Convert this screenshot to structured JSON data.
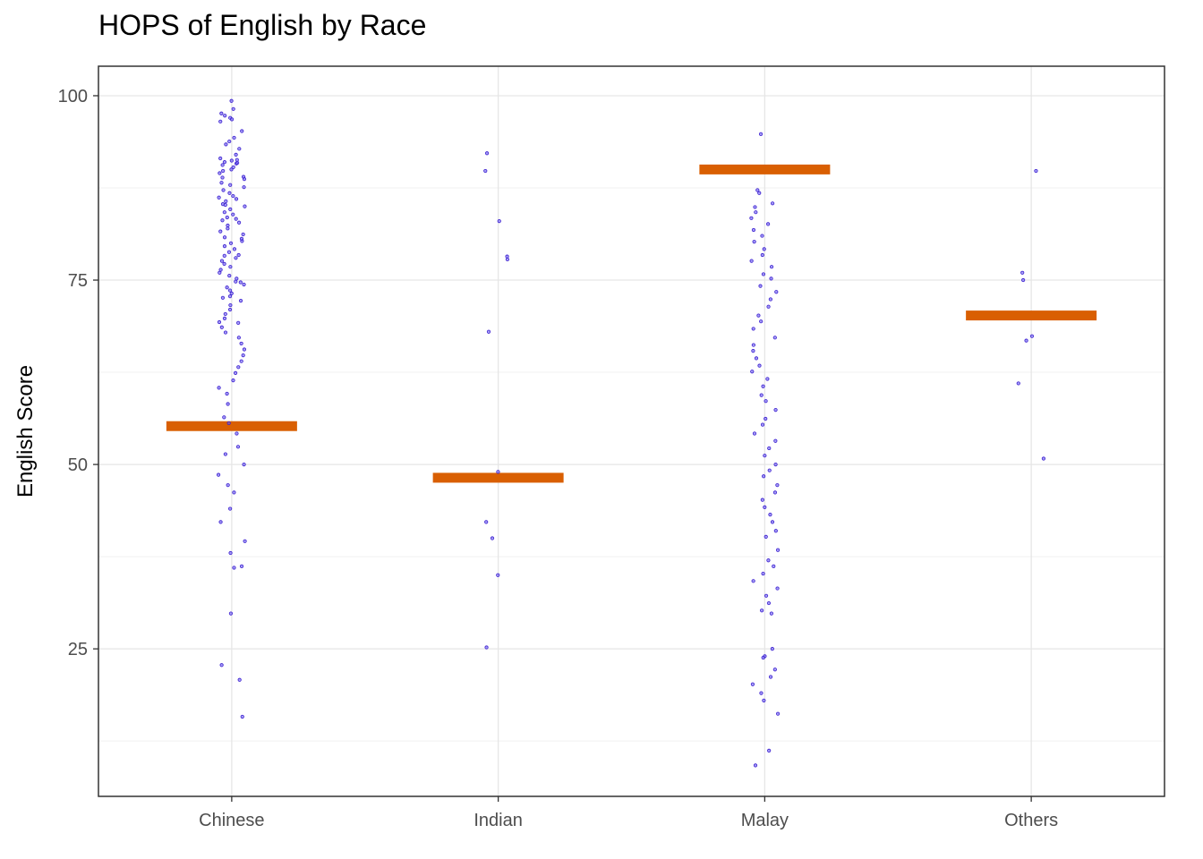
{
  "chart_data": {
    "type": "scatter",
    "title": "HOPS of English by Race",
    "xlabel": "",
    "ylabel": "English Score",
    "categories": [
      "Chinese",
      "Indian",
      "Malay",
      "Others"
    ],
    "ylim": [
      5,
      104
    ],
    "yticks": [
      25,
      50,
      75,
      100
    ],
    "grid": true,
    "legend": "none",
    "point_color": "#3b1fcf",
    "hops_color": "#d95f02",
    "hops_values": [
      55.2,
      48.2,
      90.0,
      70.2
    ],
    "points": {
      "Chinese": [
        99.3,
        98.2,
        97.6,
        97.3,
        97.0,
        96.8,
        96.5,
        95.2,
        94.3,
        93.8,
        93.4,
        92.8,
        92.0,
        91.5,
        91.2,
        91.0,
        90.8,
        90.6,
        90.3,
        90.0,
        89.8,
        89.5,
        89.0,
        88.7,
        88.2,
        87.9,
        87.6,
        87.2,
        86.8,
        86.4,
        86.0,
        85.7,
        85.3,
        85.0,
        84.6,
        84.2,
        83.9,
        83.5,
        83.1,
        82.8,
        82.4,
        82.0,
        81.6,
        81.2,
        80.8,
        80.3,
        80.0,
        79.6,
        79.2,
        78.8,
        78.4,
        78.0,
        77.6,
        77.2,
        76.8,
        76.4,
        76.0,
        75.6,
        75.2,
        74.8,
        74.4,
        74.0,
        73.6,
        73.2,
        72.8,
        72.2,
        71.6,
        71.0,
        70.4,
        69.8,
        69.2,
        68.6,
        67.9,
        67.2,
        66.4,
        65.6,
        64.8,
        64.0,
        63.2,
        62.4,
        61.4,
        60.4,
        59.6,
        58.2,
        56.4,
        55.6,
        54.2,
        52.4,
        51.4,
        50.0,
        48.6,
        47.2,
        46.2,
        44.0,
        42.2,
        39.6,
        38.0,
        36.2,
        36.0,
        29.8,
        22.8,
        20.8,
        15.8,
        85.2,
        86.2,
        88.9,
        90.9,
        91.3,
        83.3,
        80.6,
        78.3,
        74.7,
        72.6,
        69.3
      ],
      "Indian": [
        92.2,
        89.8,
        83.0,
        78.2,
        77.8,
        68.0,
        49.0,
        42.2,
        40.0,
        35.0,
        25.2
      ],
      "Malay": [
        94.8,
        87.2,
        86.8,
        85.4,
        84.9,
        84.2,
        83.4,
        82.6,
        81.8,
        81.0,
        80.2,
        79.2,
        78.4,
        77.6,
        76.8,
        75.8,
        75.2,
        74.2,
        73.4,
        72.4,
        71.4,
        70.2,
        69.4,
        68.4,
        67.2,
        66.2,
        65.4,
        64.4,
        63.4,
        62.6,
        61.6,
        60.6,
        59.4,
        58.6,
        57.4,
        56.2,
        55.4,
        54.2,
        53.2,
        52.2,
        51.2,
        50.0,
        49.2,
        48.4,
        47.2,
        46.2,
        45.2,
        44.2,
        43.2,
        42.2,
        41.0,
        40.2,
        38.4,
        37.0,
        36.2,
        35.2,
        34.2,
        33.2,
        32.2,
        31.2,
        30.2,
        29.8,
        25.0,
        24.0,
        23.8,
        22.2,
        21.2,
        20.2,
        19.0,
        18.0,
        16.2,
        11.2,
        9.2
      ],
      "Others": [
        89.8,
        76.0,
        75.0,
        67.4,
        66.8,
        61.0,
        50.8
      ]
    }
  }
}
